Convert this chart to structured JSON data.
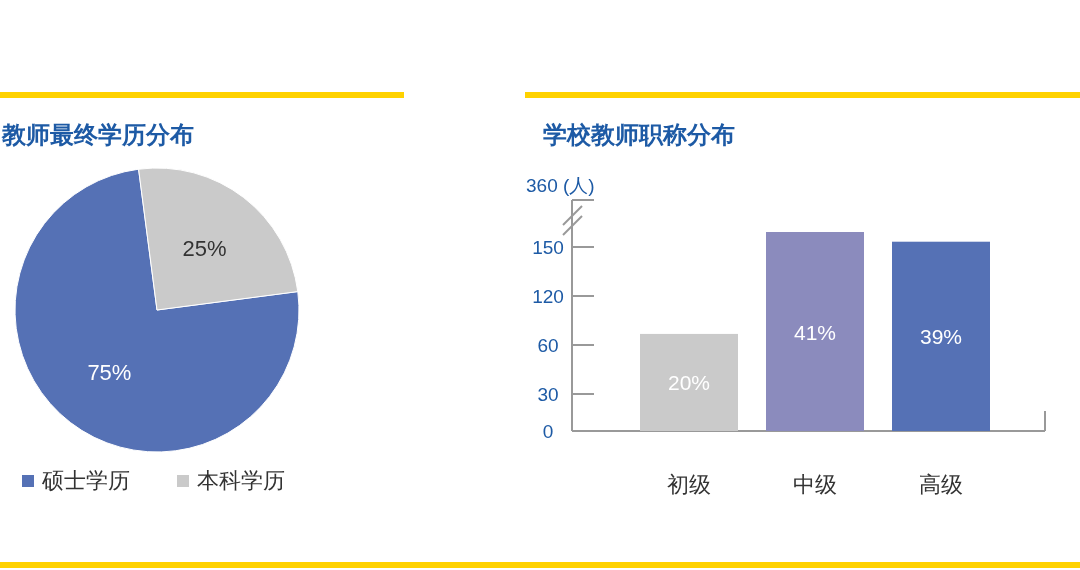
{
  "chart_data": [
    {
      "type": "pie",
      "title": "教师最终学历分布",
      "categories": [
        "硕士学历",
        "本科学历"
      ],
      "values": [
        75,
        25
      ],
      "colors": [
        "#5571b5",
        "#cacaca"
      ],
      "value_labels": [
        "75%",
        "25%"
      ],
      "legend": "bottom"
    },
    {
      "type": "bar",
      "title": "学校教师职称分布",
      "categories": [
        "初级",
        "中级",
        "高级"
      ],
      "values": [
        20,
        41,
        39
      ],
      "colors": [
        "#cacaca",
        "#8b8bbd",
        "#5571b5"
      ],
      "value_labels": [
        "20%",
        "41%",
        "39%"
      ],
      "annotations": [
        "0",
        "30",
        "60",
        "120",
        "150",
        "360 (人)"
      ]
    }
  ]
}
